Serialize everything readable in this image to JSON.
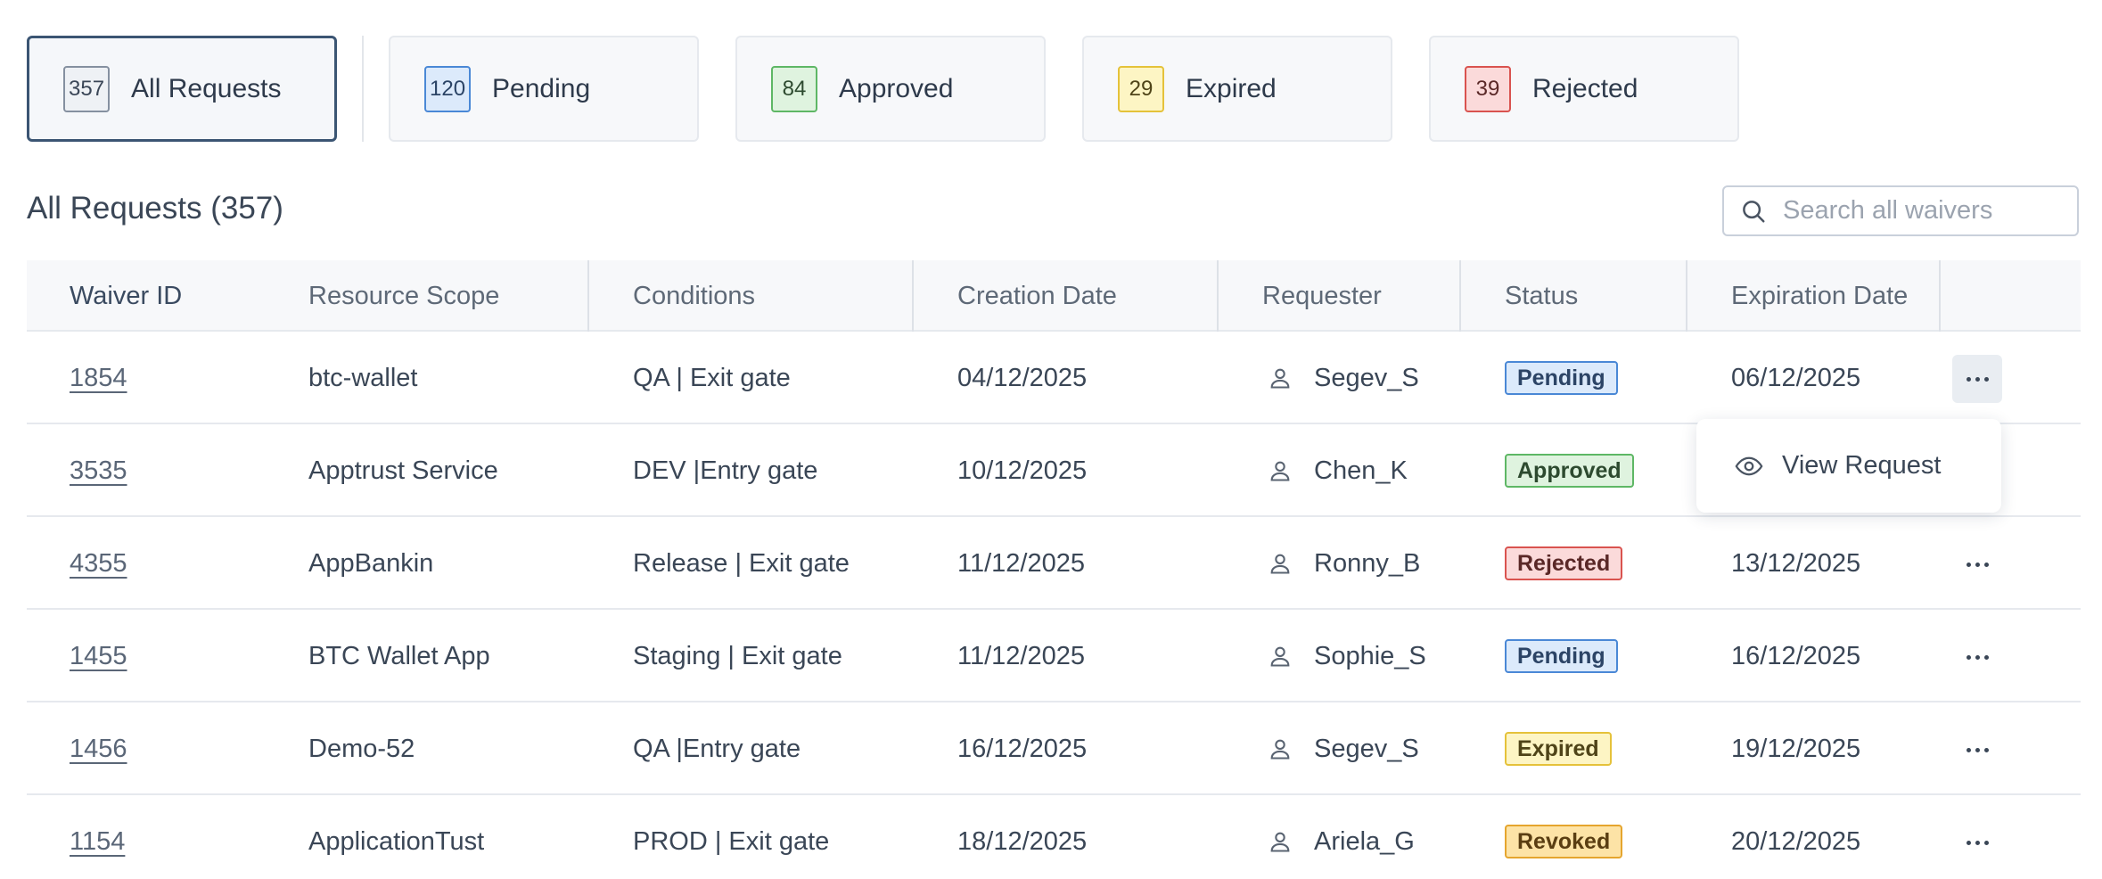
{
  "tabs": [
    {
      "count": "357",
      "label": "All Requests",
      "variant": "all",
      "active": true
    },
    {
      "count": "120",
      "label": "Pending",
      "variant": "pending",
      "active": false
    },
    {
      "count": "84",
      "label": "Approved",
      "variant": "approved",
      "active": false
    },
    {
      "count": "29",
      "label": "Expired",
      "variant": "expired",
      "active": false
    },
    {
      "count": "39",
      "label": "Rejected",
      "variant": "rejected",
      "active": false
    }
  ],
  "list": {
    "title": "All Requests (357)",
    "search_placeholder": "Search all waivers"
  },
  "table": {
    "columns": [
      "Waiver ID",
      "Resource Scope",
      "Conditions",
      "Creation Date",
      "Requester",
      "Status",
      "Expiration Date"
    ],
    "rows": [
      {
        "id": "1854",
        "scope": "btc-wallet",
        "conditions": "QA | Exit gate",
        "created": "04/12/2025",
        "requester": "Segev_S",
        "status": "Pending",
        "expires": "06/12/2025"
      },
      {
        "id": "3535",
        "scope": "Apptrust Service",
        "conditions": "DEV |Entry gate",
        "created": "10/12/2025",
        "requester": "Chen_K",
        "status": "Approved",
        "expires": ""
      },
      {
        "id": "4355",
        "scope": "AppBankin",
        "conditions": "Release | Exit gate",
        "created": "11/12/2025",
        "requester": "Ronny_B",
        "status": "Rejected",
        "expires": "13/12/2025"
      },
      {
        "id": "1455",
        "scope": "BTC Wallet App",
        "conditions": "Staging | Exit gate",
        "created": "11/12/2025",
        "requester": "Sophie_S",
        "status": "Pending",
        "expires": "16/12/2025"
      },
      {
        "id": "1456",
        "scope": "Demo-52",
        "conditions": "QA |Entry gate",
        "created": "16/12/2025",
        "requester": "Segev_S",
        "status": "Expired",
        "expires": "19/12/2025"
      },
      {
        "id": "1154",
        "scope": "ApplicationTust",
        "conditions": "PROD | Exit gate",
        "created": "18/12/2025",
        "requester": "Ariela_G",
        "status": "Revoked",
        "expires": "20/12/2025"
      }
    ]
  },
  "row_menu": {
    "open_row": 0,
    "items": [
      {
        "label": "View Request",
        "icon": "eye-icon"
      }
    ]
  },
  "icons": {
    "search": "search-icon",
    "user": "user-icon",
    "more": "more-horizontal-icon"
  }
}
